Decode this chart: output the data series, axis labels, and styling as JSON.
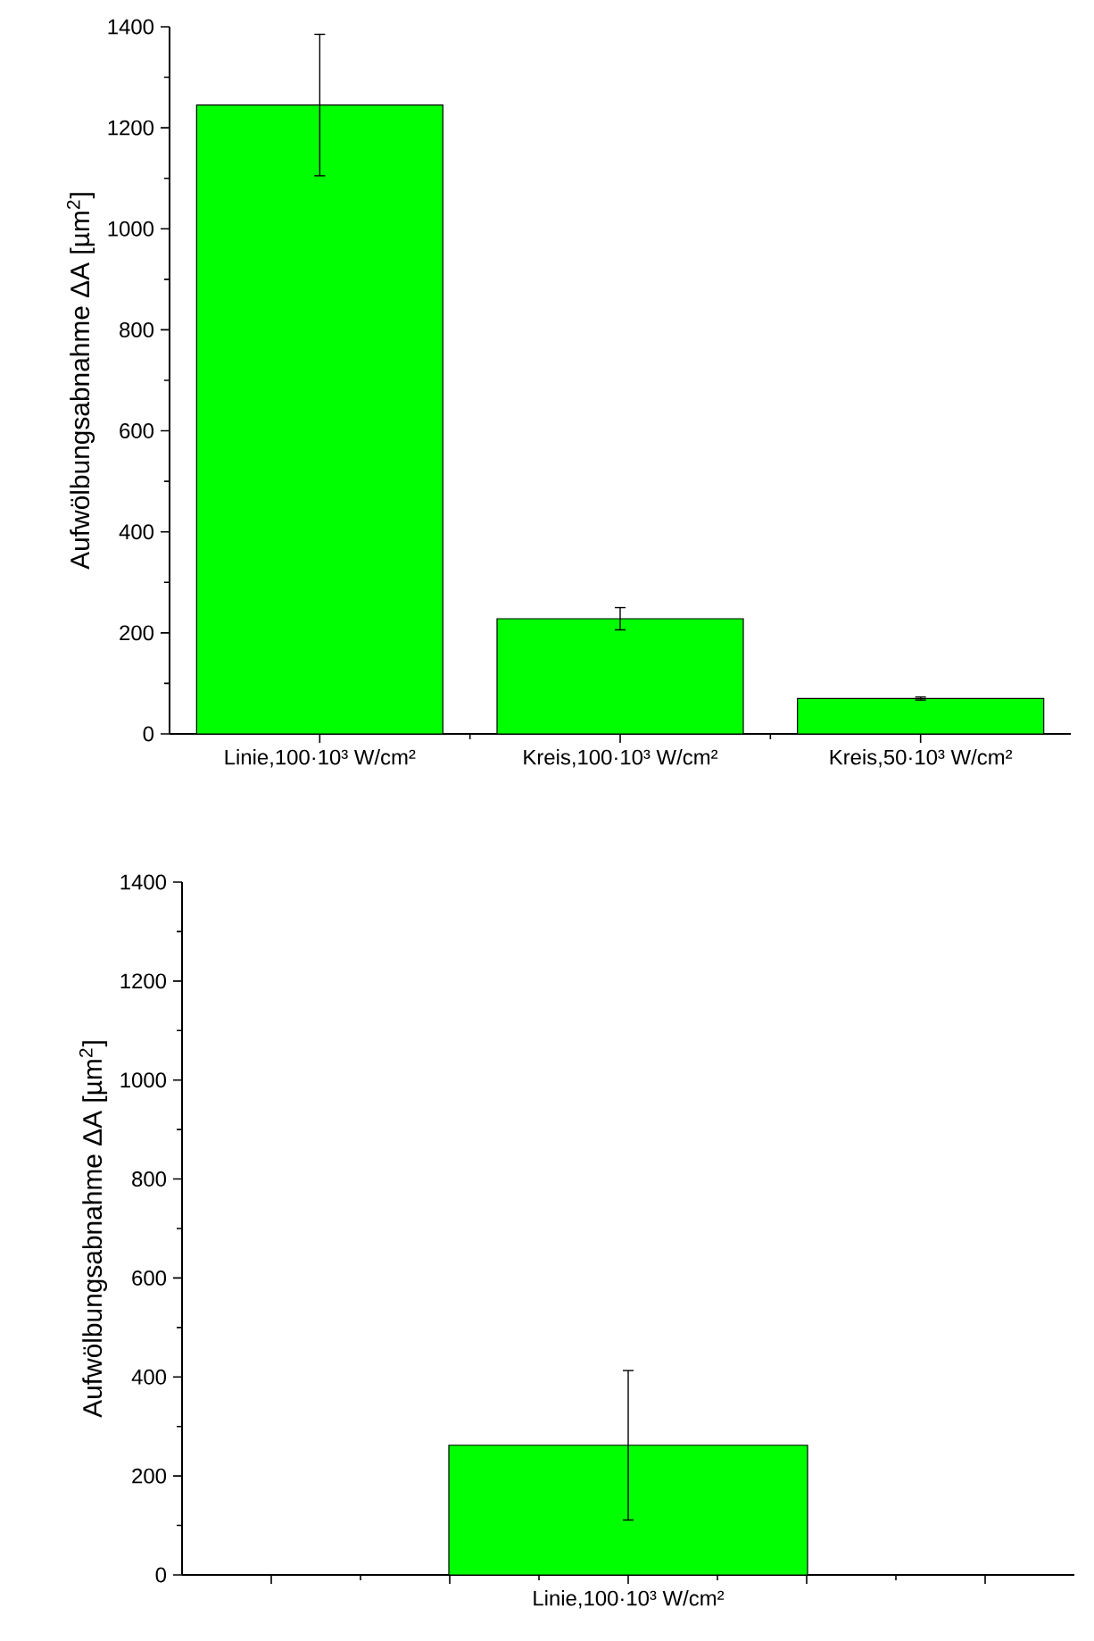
{
  "chart_data": [
    {
      "type": "bar",
      "ylabel": "Aufwölbungsabnahme ΔA [µm$^{2}$]",
      "categories": [
        "Linie,100·10³ W/cm²",
        "Kreis,100·10³ W/cm²",
        "Kreis,50·10³ W/cm²"
      ],
      "values": [
        1245,
        228,
        70
      ],
      "errors": [
        140,
        22,
        3
      ],
      "color": "#00ff00",
      "ylim": [
        0,
        1400
      ],
      "yticks": [
        0,
        200,
        400,
        600,
        800,
        1000,
        1200,
        1400
      ]
    },
    {
      "type": "bar",
      "ylabel": "Aufwölbungsabnahme ΔA [µm$^{2}$]",
      "categories": [
        null,
        null,
        "Linie,100·10³ W/cm²",
        null,
        null
      ],
      "values": [
        null,
        null,
        262,
        null,
        null
      ],
      "errors": [
        null,
        null,
        151,
        null,
        null
      ],
      "color": "#00ff00",
      "ylim": [
        0,
        1400
      ],
      "yticks": [
        0,
        200,
        400,
        600,
        800,
        1000,
        1200,
        1400
      ]
    }
  ]
}
